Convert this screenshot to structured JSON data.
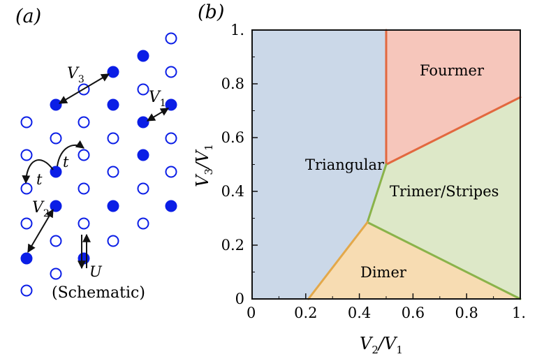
{
  "panel_a": {
    "label": "(a)",
    "schematic_label": "(Schematic)",
    "V1": "V",
    "V1_sub": "1",
    "V2": "V",
    "V2_sub": "2",
    "V3": "V",
    "V3_sub": "3",
    "t1": "t",
    "t2": "t",
    "U": "U",
    "colors": {
      "site": "#0b1ee6",
      "arrow": "#111111"
    }
  },
  "panel_b": {
    "label": "(b)",
    "xlabel_main": "V",
    "xlabel_sub": "2",
    "xlabel_slash": "/V",
    "xlabel_sub2": "1",
    "ylabel": "V3/V1",
    "xticks": [
      "0",
      "0.2",
      "0.4",
      "0.6",
      "0.8",
      "1."
    ],
    "yticks": [
      "0",
      "0.2",
      "0.4",
      "0.6",
      "0.8",
      "1."
    ],
    "regions": {
      "triangular": "Triangular",
      "fourmer": "Fourmer",
      "trimer": "Trimer/Stripes",
      "dimer": "Dimer"
    },
    "colors": {
      "triangular": "#cbd8e8",
      "fourmer": "#f6c6bb",
      "trimer": "#dde8c8",
      "dimer": "#f7dcb2",
      "boundary_red": "#e2683f",
      "boundary_green": "#8ab34a",
      "boundary_orange": "#e3a84a"
    }
  },
  "chart_data": {
    "type": "phase_diagram",
    "xlim": [
      0,
      1
    ],
    "ylim": [
      0,
      1
    ],
    "xlabel": "V2/V1",
    "ylabel": "V3/V1",
    "regions": [
      "Triangular",
      "Fourmer",
      "Trimer/Stripes",
      "Dimer"
    ],
    "boundaries": [
      {
        "between": [
          "Triangular",
          "Fourmer"
        ],
        "points": [
          [
            0.5,
            0.5
          ],
          [
            0.5,
            1.0
          ]
        ]
      },
      {
        "between": [
          "Fourmer",
          "Trimer/Stripes"
        ],
        "points": [
          [
            0.5,
            0.5
          ],
          [
            1.0,
            0.75
          ]
        ]
      },
      {
        "between": [
          "Triangular",
          "Trimer/Stripes"
        ],
        "points": [
          [
            0.43,
            0.285
          ],
          [
            0.5,
            0.5
          ]
        ]
      },
      {
        "between": [
          "Dimer",
          "Trimer/Stripes"
        ],
        "points": [
          [
            0.43,
            0.285
          ],
          [
            1.0,
            0.0
          ]
        ]
      },
      {
        "between": [
          "Triangular",
          "Dimer"
        ],
        "points": [
          [
            0.21,
            0.0
          ],
          [
            0.43,
            0.285
          ]
        ]
      }
    ]
  }
}
